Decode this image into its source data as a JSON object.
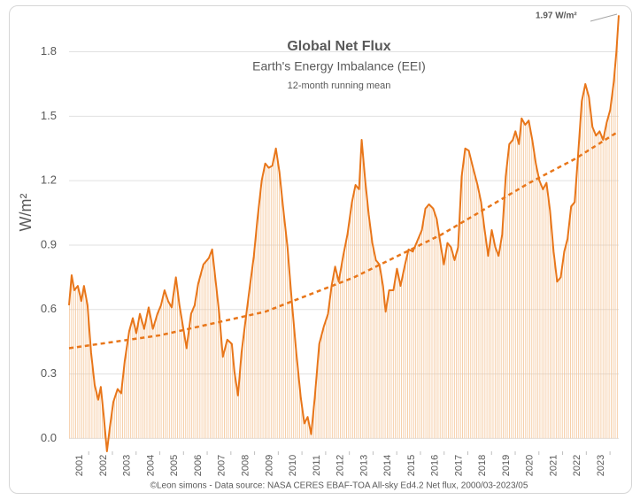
{
  "chart_data": {
    "type": "line",
    "title": "Global Net Flux",
    "subtitle": "Earth's Energy Imbalance (EEI)",
    "subsubtitle": "12-month running mean",
    "ylabel": "W/m²",
    "source": "©Leon simons - Data source: NASA CERES EBAF-TOA All-sky Ed4.2 Net flux, 2000/03-2023/05",
    "annotation": "1.97 W/m²",
    "color": "#e8761a",
    "fill_color": "#f4c496",
    "grid": true,
    "xlim": [
      2000.17,
      2023.37
    ],
    "xticks": [
      2001,
      2002,
      2003,
      2004,
      2005,
      2006,
      2007,
      2008,
      2009,
      2010,
      2011,
      2012,
      2013,
      2014,
      2015,
      2016,
      2017,
      2018,
      2019,
      2020,
      2021,
      2022,
      2023
    ],
    "ylim": [
      -0.06,
      2.0
    ],
    "yticks": [
      {
        "value": 0,
        "label": "0.0"
      },
      0.3,
      0.6,
      0.9,
      1.2,
      1.5,
      1.8
    ],
    "x": [
      2000.17,
      2000.28,
      2000.39,
      2000.54,
      2000.69,
      2000.8,
      2000.95,
      2001.1,
      2001.25,
      2001.4,
      2001.51,
      2001.63,
      2001.77,
      2001.89,
      2002.04,
      2002.22,
      2002.37,
      2002.52,
      2002.71,
      2002.86,
      2003.01,
      2003.16,
      2003.34,
      2003.53,
      2003.71,
      2003.9,
      2004.05,
      2004.2,
      2004.35,
      2004.5,
      2004.68,
      2004.83,
      2004.98,
      2005.13,
      2005.32,
      2005.47,
      2005.62,
      2005.84,
      2006.07,
      2006.21,
      2006.36,
      2006.51,
      2006.66,
      2006.85,
      2007.04,
      2007.15,
      2007.3,
      2007.45,
      2007.63,
      2007.78,
      2007.97,
      2008.12,
      2008.3,
      2008.45,
      2008.6,
      2008.75,
      2008.9,
      2009.05,
      2009.2,
      2009.39,
      2009.57,
      2009.76,
      2009.95,
      2010.1,
      2010.24,
      2010.39,
      2010.54,
      2010.73,
      2010.92,
      2011.1,
      2011.25,
      2011.4,
      2011.55,
      2011.74,
      2011.92,
      2012.11,
      2012.26,
      2012.41,
      2012.52,
      2012.67,
      2012.82,
      2012.97,
      2013.12,
      2013.27,
      2013.42,
      2013.53,
      2013.68,
      2013.86,
      2014.01,
      2014.16,
      2014.35,
      2014.5,
      2014.68,
      2014.87,
      2015.06,
      2015.21,
      2015.36,
      2015.54,
      2015.69,
      2015.84,
      2015.99,
      2016.14,
      2016.29,
      2016.44,
      2016.59,
      2016.74,
      2016.89,
      2017.04,
      2017.22,
      2017.41,
      2017.56,
      2017.71,
      2017.86,
      2018.01,
      2018.16,
      2018.3,
      2018.45,
      2018.6,
      2018.75,
      2018.9,
      2019.01,
      2019.16,
      2019.27,
      2019.42,
      2019.57,
      2019.72,
      2019.87,
      2020.02,
      2020.17,
      2020.32,
      2020.47,
      2020.62,
      2020.77,
      2020.92,
      2021.07,
      2021.21,
      2021.36,
      2021.51,
      2021.66,
      2021.81,
      2021.96,
      2022.11,
      2022.26,
      2022.41,
      2022.56,
      2022.71,
      2022.86,
      2023.01,
      2023.16,
      2023.27,
      2023.37
    ],
    "values": [
      0.62,
      0.76,
      0.69,
      0.71,
      0.64,
      0.71,
      0.62,
      0.4,
      0.25,
      0.18,
      0.24,
      0.11,
      -0.06,
      0.05,
      0.17,
      0.23,
      0.21,
      0.36,
      0.5,
      0.56,
      0.49,
      0.58,
      0.51,
      0.61,
      0.51,
      0.58,
      0.62,
      0.69,
      0.64,
      0.61,
      0.75,
      0.62,
      0.52,
      0.42,
      0.58,
      0.62,
      0.72,
      0.81,
      0.84,
      0.88,
      0.73,
      0.58,
      0.38,
      0.46,
      0.44,
      0.31,
      0.2,
      0.4,
      0.56,
      0.69,
      0.85,
      1.02,
      1.2,
      1.28,
      1.26,
      1.27,
      1.35,
      1.24,
      1.08,
      0.89,
      0.64,
      0.4,
      0.19,
      0.07,
      0.1,
      0.02,
      0.19,
      0.44,
      0.52,
      0.58,
      0.71,
      0.8,
      0.73,
      0.85,
      0.95,
      1.1,
      1.18,
      1.16,
      1.39,
      1.2,
      1.04,
      0.91,
      0.83,
      0.81,
      0.71,
      0.59,
      0.69,
      0.69,
      0.79,
      0.71,
      0.81,
      0.88,
      0.87,
      0.92,
      0.97,
      1.07,
      1.09,
      1.07,
      1.02,
      0.91,
      0.81,
      0.91,
      0.89,
      0.83,
      0.89,
      1.22,
      1.35,
      1.34,
      1.26,
      1.18,
      1.1,
      0.97,
      0.85,
      0.97,
      0.89,
      0.85,
      0.95,
      1.22,
      1.37,
      1.39,
      1.43,
      1.37,
      1.49,
      1.46,
      1.48,
      1.39,
      1.28,
      1.2,
      1.16,
      1.19,
      1.06,
      0.87,
      0.73,
      0.75,
      0.87,
      0.93,
      1.08,
      1.1,
      1.33,
      1.57,
      1.65,
      1.59,
      1.45,
      1.41,
      1.43,
      1.39,
      1.47,
      1.53,
      1.66,
      1.8,
      1.97
    ],
    "trend": {
      "x": [
        2000.17,
        2004.0,
        2008.45,
        2012.2,
        2015.9,
        2019.6,
        2021.5,
        2023.37
      ],
      "values": [
        0.42,
        0.48,
        0.59,
        0.75,
        0.95,
        1.19,
        1.3,
        1.43
      ]
    }
  }
}
